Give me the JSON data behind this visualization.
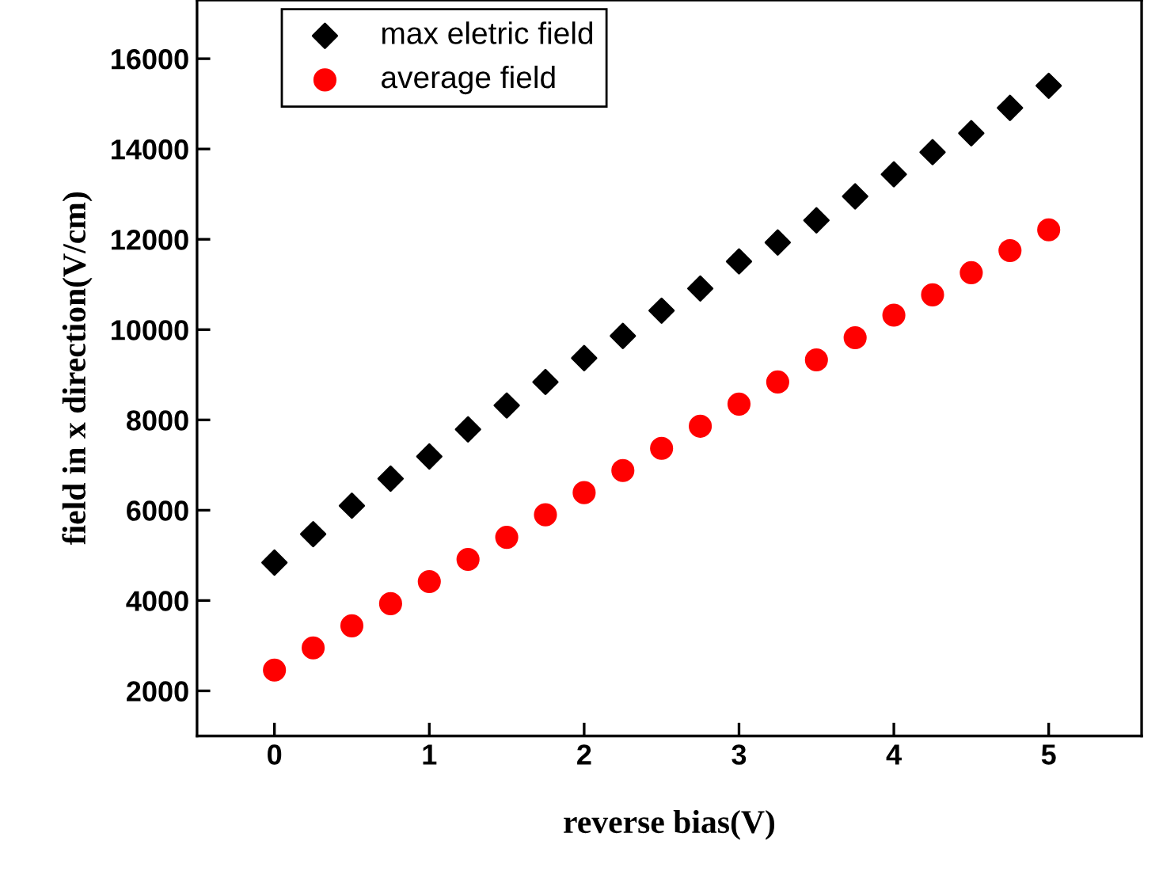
{
  "chart_data": {
    "type": "scatter",
    "xlabel": "reverse bias(V)",
    "ylabel": "field in x direction(V/cm)",
    "x": [
      0,
      0.25,
      0.5,
      0.75,
      1,
      1.25,
      1.5,
      1.75,
      2,
      2.25,
      2.5,
      2.75,
      3,
      3.25,
      3.5,
      3.75,
      4,
      4.25,
      4.5,
      4.75,
      5
    ],
    "series": [
      {
        "name": "max eletric field",
        "color": "#000000",
        "marker": "diamond",
        "values": [
          4840,
          5470,
          6100,
          6700,
          7190,
          7790,
          8320,
          8840,
          9370,
          9860,
          10420,
          10910,
          11510,
          11930,
          12420,
          12950,
          13440,
          13930,
          14350,
          14910,
          15400
        ]
      },
      {
        "name": "average field",
        "color": "#ff0000",
        "marker": "circle",
        "values": [
          2460,
          2950,
          3440,
          3930,
          4420,
          4910,
          5400,
          5900,
          6390,
          6880,
          7370,
          7860,
          8350,
          8840,
          9330,
          9820,
          10320,
          10770,
          11260,
          11750,
          12210
        ]
      }
    ],
    "xlim": [
      -0.5,
      5.6
    ],
    "xticks": [
      0,
      1,
      2,
      3,
      4,
      5
    ],
    "ylim": [
      1000,
      17300
    ],
    "yticks": [
      2000,
      4000,
      6000,
      8000,
      10000,
      12000,
      14000,
      16000
    ],
    "grid": false,
    "legend": "top left"
  }
}
